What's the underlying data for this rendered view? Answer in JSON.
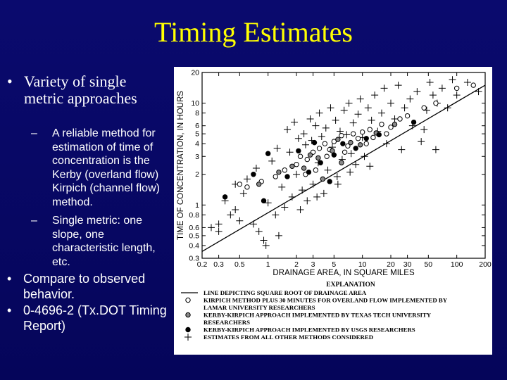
{
  "slide": {
    "title": "Timing Estimates",
    "bullet1": "Variety of single metric approaches",
    "sub1": "A reliable method for estimation of time of concentration is the Kerby (overland flow) Kirpich (channel flow) method.",
    "sub2": "Single metric: one slope, one characteristic length, etc.",
    "bullet2": "Compare to observed behavior.",
    "bullet3": "0-4696-2 (Tx.DOT Timing Report)",
    "bullet_symbol": "•",
    "dash_symbol": "–",
    "colors": {
      "background": "#0a0a6e",
      "title": "#ffff00",
      "text": "#ffffff"
    }
  },
  "chart_data": {
    "type": "scatter",
    "xscale": "log",
    "yscale": "log",
    "xlabel": "DRAINAGE AREA, IN SQUARE MILES",
    "ylabel": "TIME OF CONCENTRATION, IN HOURS",
    "xlim": [
      0.2,
      200
    ],
    "ylim": [
      0.3,
      20
    ],
    "x_tick_labels": [
      "0.2",
      "0.3",
      "0.5",
      "1",
      "2",
      "3",
      "5",
      "10",
      "20",
      "30",
      "50",
      "100",
      "200"
    ],
    "x_ticks": [
      0.2,
      0.3,
      0.5,
      1,
      2,
      3,
      5,
      10,
      20,
      30,
      50,
      100,
      200
    ],
    "y_tick_labels": [
      "0.3",
      "0.4",
      "0.5",
      "0.6",
      "0.8",
      "1",
      "2",
      "3",
      "4",
      "5",
      "6",
      "8",
      "10",
      "20"
    ],
    "y_ticks": [
      0.3,
      0.4,
      0.5,
      0.6,
      0.8,
      1,
      2,
      3,
      4,
      5,
      6,
      8,
      10,
      20
    ],
    "legend_title": "EXPLANATION",
    "legend": [
      {
        "symbol": "line",
        "label": "LINE DEPICTING SQUARE ROOT OF DRAINAGE AREA"
      },
      {
        "symbol": "open-circle",
        "label": "KIRPICH METHOD PLUS 30 MINUTES FOR OVERLAND FLOW IMPLEMENTED BY LAMAR UNIVERSITY RESEARCHERS"
      },
      {
        "symbol": "gray-circle",
        "label": "KERBY-KIRPICH APPROACH IMPLEMENTED BY TEXAS TECH UNIVERSITY RESEARCHERS"
      },
      {
        "symbol": "filled-circle",
        "label": "KERBY-KIRPICH APPROACH IMPLEMENTED BY USGS RESEARCHERS"
      },
      {
        "symbol": "plus",
        "label": "ESTIMATES FROM ALL OTHER METHODS CONSIDERED"
      }
    ],
    "line": {
      "name": "LINE DEPICTING SQUARE ROOT OF DRAINAGE AREA",
      "x": [
        0.2,
        200
      ],
      "y": [
        0.35,
        15
      ]
    },
    "series": [
      {
        "name": "KIRPICH METHOD PLUS 30 MINUTES FOR OVERLAND FLOW IMPLEMENTED BY LAMAR UNIVERSITY RESEARCHERS",
        "marker": "open-circle",
        "points": [
          [
            0.5,
            1.6
          ],
          [
            0.6,
            1.5
          ],
          [
            0.85,
            1.7
          ],
          [
            1.2,
            1.9
          ],
          [
            1.5,
            2.2
          ],
          [
            2,
            2.5
          ],
          [
            2.2,
            3
          ],
          [
            2.6,
            2.8
          ],
          [
            3,
            3.3
          ],
          [
            3.5,
            3.6
          ],
          [
            4,
            4
          ],
          [
            4.5,
            3.5
          ],
          [
            5,
            4.2
          ],
          [
            6,
            4.8
          ],
          [
            7,
            3.8
          ],
          [
            8,
            5
          ],
          [
            9,
            4.5
          ],
          [
            10,
            5.2
          ],
          [
            12,
            5.5
          ],
          [
            13,
            4.6
          ],
          [
            16,
            6.2
          ],
          [
            18,
            5
          ],
          [
            20,
            5.8
          ],
          [
            25,
            7
          ],
          [
            30,
            7.5
          ],
          [
            45,
            9
          ],
          [
            60,
            10
          ],
          [
            100,
            14
          ],
          [
            150,
            15
          ],
          [
            2.5,
            2
          ],
          [
            3.2,
            2.2
          ],
          [
            4.2,
            3
          ],
          [
            6.5,
            3.3
          ],
          [
            11,
            4
          ]
        ]
      },
      {
        "name": "KERBY-KIRPICH APPROACH IMPLEMENTED BY TEXAS TECH UNIVERSITY RESEARCHERS",
        "marker": "gray-circle",
        "points": [
          [
            0.8,
            1.6
          ],
          [
            1.3,
            2.1
          ],
          [
            1.8,
            2.4
          ],
          [
            2.4,
            2.3
          ],
          [
            2.8,
            3.1
          ],
          [
            3.4,
            2.9
          ],
          [
            4.8,
            3.4
          ],
          [
            5.5,
            4.4
          ],
          [
            7.5,
            4.1
          ],
          [
            9.5,
            3.9
          ],
          [
            14,
            5.1
          ],
          [
            22,
            6.2
          ],
          [
            3.8,
            1.8
          ],
          [
            6,
            2.6
          ]
        ]
      },
      {
        "name": "KERBY-KIRPICH APPROACH IMPLEMENTED BY USGS RESEARCHERS",
        "marker": "filled-circle",
        "points": [
          [
            0.35,
            1.2
          ],
          [
            0.7,
            2
          ],
          [
            1,
            3.2
          ],
          [
            1.6,
            1.9
          ],
          [
            2.1,
            3.4
          ],
          [
            2.7,
            2.1
          ],
          [
            3.1,
            4.1
          ],
          [
            3.6,
            2.6
          ],
          [
            5,
            3.1
          ],
          [
            6.2,
            4
          ],
          [
            8.5,
            3.6
          ],
          [
            11,
            4.5
          ],
          [
            15,
            4.9
          ],
          [
            35,
            6.5
          ],
          [
            0.9,
            1.1
          ],
          [
            4.5,
            1.7
          ]
        ]
      },
      {
        "name": "ESTIMATES FROM ALL OTHER METHODS CONSIDERED",
        "marker": "plus",
        "points": [
          [
            0.3,
            0.55
          ],
          [
            0.3,
            0.65
          ],
          [
            0.35,
            1.1
          ],
          [
            0.4,
            0.8
          ],
          [
            0.45,
            0.9
          ],
          [
            0.5,
            0.7
          ],
          [
            0.55,
            1.3
          ],
          [
            0.6,
            1.8
          ],
          [
            0.75,
            2.3
          ],
          [
            0.8,
            0.55
          ],
          [
            0.9,
            0.45
          ],
          [
            0.95,
            0.4
          ],
          [
            1,
            1.05
          ],
          [
            1.1,
            2.7
          ],
          [
            1.2,
            0.8
          ],
          [
            1.25,
            3.6
          ],
          [
            1.4,
            1.5
          ],
          [
            1.5,
            0.95
          ],
          [
            1.6,
            5.5
          ],
          [
            1.7,
            3.3
          ],
          [
            1.8,
            1.2
          ],
          [
            1.9,
            6.5
          ],
          [
            2,
            2
          ],
          [
            2.1,
            4.5
          ],
          [
            2.3,
            1.4
          ],
          [
            2.4,
            5
          ],
          [
            2.5,
            3.9
          ],
          [
            2.6,
            1.1
          ],
          [
            2.8,
            7
          ],
          [
            2.9,
            4.3
          ],
          [
            3,
            1.6
          ],
          [
            3.2,
            6
          ],
          [
            3.4,
            2.6
          ],
          [
            3.5,
            8
          ],
          [
            3.7,
            4.7
          ],
          [
            3.9,
            1.3
          ],
          [
            4.1,
            5.7
          ],
          [
            4.3,
            2.2
          ],
          [
            4.6,
            9
          ],
          [
            4.8,
            3.7
          ],
          [
            5.2,
            6.8
          ],
          [
            5.4,
            1.9
          ],
          [
            5.8,
            5.3
          ],
          [
            6.1,
            2.8
          ],
          [
            6.4,
            8.5
          ],
          [
            6.8,
            4.9
          ],
          [
            7.2,
            10
          ],
          [
            7.6,
            3.2
          ],
          [
            8,
            6.4
          ],
          [
            8.5,
            2.5
          ],
          [
            9,
            7.8
          ],
          [
            9.5,
            11
          ],
          [
            10,
            4.6
          ],
          [
            10.5,
            3
          ],
          [
            11.5,
            9
          ],
          [
            12.5,
            6.8
          ],
          [
            13.5,
            12
          ],
          [
            14.5,
            5.3
          ],
          [
            16,
            8
          ],
          [
            17,
            14
          ],
          [
            18,
            4
          ],
          [
            20,
            10
          ],
          [
            22,
            7
          ],
          [
            24,
            15
          ],
          [
            26,
            3.5
          ],
          [
            28,
            9
          ],
          [
            32,
            11
          ],
          [
            34,
            6
          ],
          [
            38,
            13
          ],
          [
            42,
            4.2
          ],
          [
            48,
            8.5
          ],
          [
            52,
            16
          ],
          [
            56,
            12
          ],
          [
            62,
            10
          ],
          [
            70,
            14
          ],
          [
            80,
            9
          ],
          [
            90,
            17
          ],
          [
            100,
            12
          ],
          [
            130,
            16
          ],
          [
            170,
            13
          ],
          [
            60,
            3.5
          ],
          [
            45,
            5.5
          ],
          [
            0.7,
            0.65
          ],
          [
            1.3,
            0.5
          ],
          [
            2.2,
            0.9
          ],
          [
            3.3,
            1.2
          ],
          [
            5.5,
            1.6
          ],
          [
            7.4,
            2.1
          ],
          [
            12,
            2.4
          ],
          [
            0.25,
            0.6
          ],
          [
            0.45,
            1.6
          ]
        ]
      }
    ]
  }
}
